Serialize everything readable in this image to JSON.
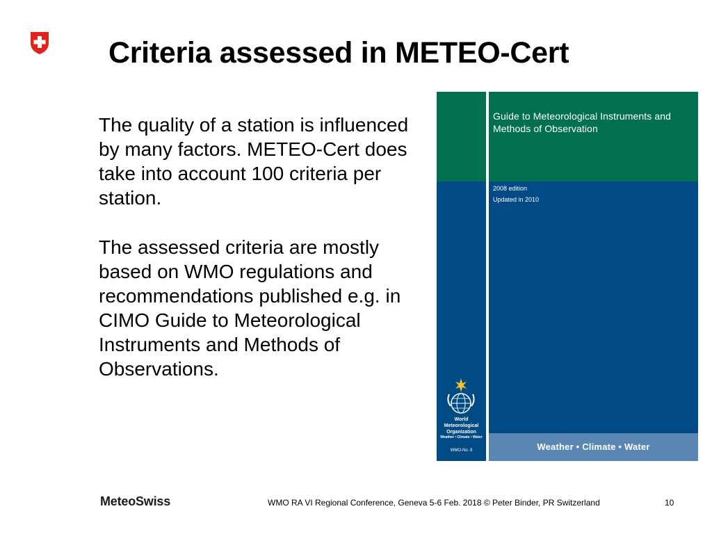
{
  "slide": {
    "title": "Criteria assessed in METEO-Cert",
    "paragraphs": [
      "The quality of a station is influenced by many factors. METEO-Cert does take into account 100 criteria per station.",
      "The assessed criteria are mostly based on WMO regulations and recommendations published e.g. in CIMO Guide to Meteorological Instruments and Methods of Observations."
    ]
  },
  "cover": {
    "title": "Guide to Meteorological Instruments and Methods of Observation",
    "edition": "2008 edition",
    "updated": "Updated in 2010",
    "tagline": "Weather • Climate • Water",
    "org_name_lines": [
      "World",
      "Meteorological",
      "Organization"
    ],
    "org_motto": "Weather • Climate • Water",
    "wmo_number": "WMO-No. 8",
    "colors": {
      "green": "#00704f",
      "blue": "#004a86",
      "band": "#5a86b3"
    },
    "emblem_icon": "wmo-emblem-icon"
  },
  "footer": {
    "brand": "MeteoSwiss",
    "credit": "WMO RA VI Regional Conference, Geneva 5-6 Feb. 2018 © Peter Binder, PR Switzerland",
    "page_number": "10"
  },
  "logo": {
    "icon": "swiss-shield-icon",
    "color": "#e2231a"
  }
}
